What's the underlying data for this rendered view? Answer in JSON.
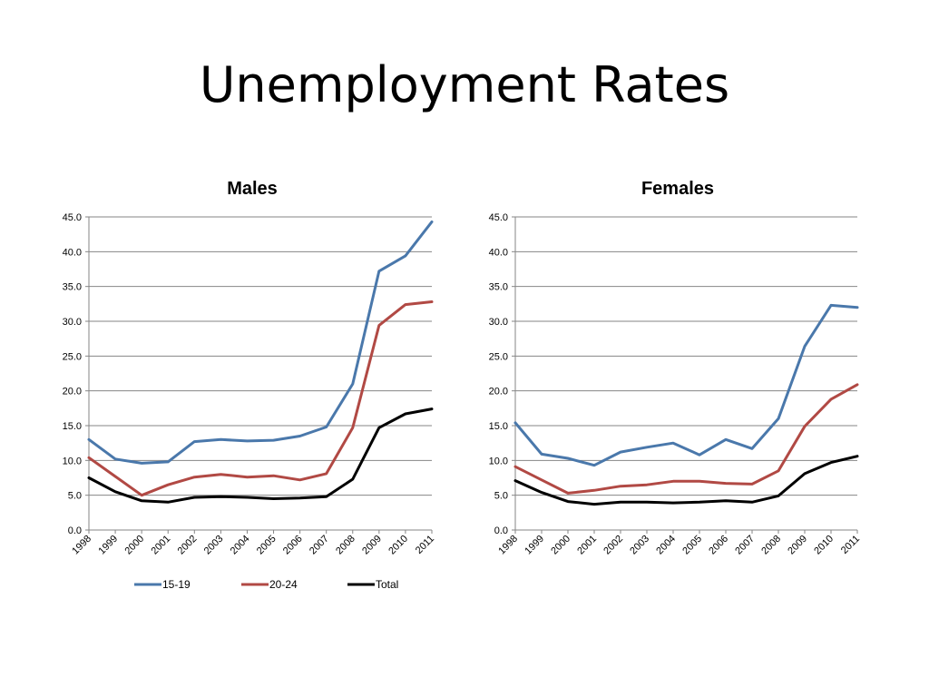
{
  "slide": {
    "title": "Unemployment Rates"
  },
  "colors": {
    "s1519": "#4A78AB",
    "s2024": "#B14944",
    "total": "#000000",
    "grid": "#868686"
  },
  "chart_data": [
    {
      "type": "line",
      "title": "Males",
      "xlabel": "",
      "ylabel": "",
      "ylim": [
        0,
        45
      ],
      "yticks": [
        "0.0",
        "5.0",
        "10.0",
        "15.0",
        "20.0",
        "25.0",
        "30.0",
        "35.0",
        "40.0",
        "45.0"
      ],
      "grid": true,
      "legend": "bottom",
      "categories": [
        "1998",
        "1999",
        "2000",
        "2001",
        "2002",
        "2003",
        "2004",
        "2005",
        "2006",
        "2007",
        "2008",
        "2009",
        "2010",
        "2011"
      ],
      "series": [
        {
          "name": "15-19",
          "color": "#4A78AB",
          "values": [
            13.0,
            10.2,
            9.6,
            9.8,
            12.7,
            13.0,
            12.8,
            12.9,
            13.5,
            14.8,
            21.0,
            37.2,
            39.4,
            44.3
          ]
        },
        {
          "name": "20-24",
          "color": "#B14944",
          "values": [
            10.4,
            7.7,
            5.0,
            6.5,
            7.6,
            8.0,
            7.6,
            7.8,
            7.2,
            8.1,
            14.7,
            29.4,
            32.4,
            32.8
          ]
        },
        {
          "name": "Total",
          "color": "#000000",
          "values": [
            7.5,
            5.5,
            4.2,
            4.0,
            4.7,
            4.8,
            4.7,
            4.5,
            4.6,
            4.8,
            7.3,
            14.7,
            16.7,
            17.4
          ]
        }
      ]
    },
    {
      "type": "line",
      "title": "Females",
      "xlabel": "",
      "ylabel": "",
      "ylim": [
        0,
        45
      ],
      "yticks": [
        "0.0",
        "5.0",
        "10.0",
        "15.0",
        "20.0",
        "25.0",
        "30.0",
        "35.0",
        "40.0",
        "45.0"
      ],
      "grid": true,
      "legend": "none",
      "categories": [
        "1998",
        "1999",
        "2000",
        "2001",
        "2002",
        "2003",
        "2004",
        "2005",
        "2006",
        "2007",
        "2008",
        "2009",
        "2010",
        "2011"
      ],
      "series": [
        {
          "name": "15-19",
          "color": "#4A78AB",
          "values": [
            15.4,
            10.9,
            10.3,
            9.3,
            11.2,
            11.9,
            12.5,
            10.8,
            13.0,
            11.7,
            16.0,
            26.4,
            32.3,
            32.0
          ]
        },
        {
          "name": "20-24",
          "color": "#B14944",
          "values": [
            9.1,
            7.2,
            5.3,
            5.7,
            6.3,
            6.5,
            7.0,
            7.0,
            6.7,
            6.6,
            8.5,
            14.9,
            18.8,
            20.9
          ]
        },
        {
          "name": "Total",
          "color": "#000000",
          "values": [
            7.1,
            5.4,
            4.1,
            3.7,
            4.0,
            4.0,
            3.9,
            4.0,
            4.2,
            4.0,
            4.9,
            8.1,
            9.7,
            10.6
          ]
        }
      ]
    }
  ]
}
